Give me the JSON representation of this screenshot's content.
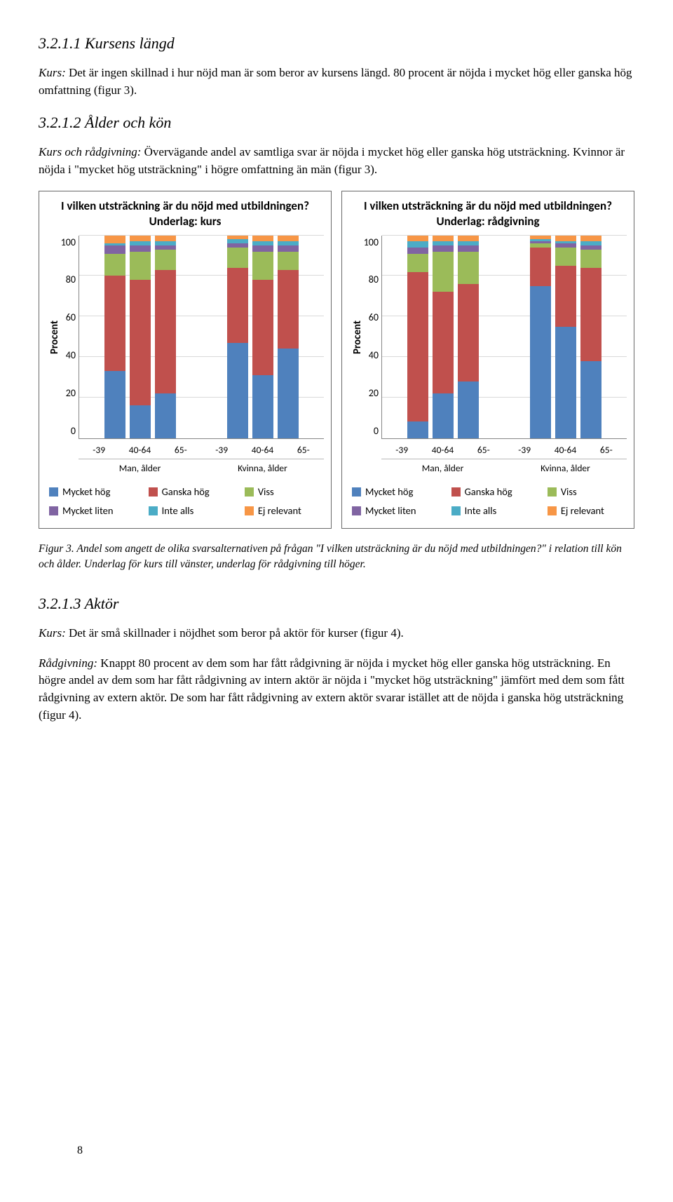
{
  "headings": {
    "h1": "3.2.1.1 Kursens längd",
    "h2": "3.2.1.2 Ålder och kön",
    "h3": "3.2.1.3 Aktör"
  },
  "paragraphs": {
    "p1_a": "Kurs:",
    "p1_b": " Det är ingen skillnad i hur nöjd man är som beror av kursens längd. 80 procent är nöjda i mycket hög eller ganska hög omfattning (figur 3).",
    "p2_a": "Kurs och rådgivning:",
    "p2_b": " Övervägande andel av samtliga svar är nöjda i mycket hög eller ganska hög utsträckning. Kvinnor är nöjda i \"mycket hög utsträckning\" i högre omfattning än män (figur 3).",
    "caption": "Figur 3. Andel som angett de olika svarsalternativen på frågan \"I vilken utsträckning är du nöjd med utbildningen?\" i relation till kön och ålder. Underlag för kurs till vänster, underlag för rådgivning till höger.",
    "p3_a": "Kurs:",
    "p3_b": " Det är små skillnader i nöjdhet som beror på aktör för kurser (figur 4).",
    "p4_a": "Rådgivning:",
    "p4_b": " Knappt 80 procent av dem som har fått rådgivning är nöjda i mycket hög eller ganska hög utsträckning. En högre andel av dem som har fått rådgivning av intern aktör är nöjda i \"mycket hög utsträckning\" jämfört med dem som fått rådgivning av extern aktör. De som har fått rådgivning av extern aktör svarar istället att de nöjda i ganska hög utsträckning (figur 4)."
  },
  "page_number": "8",
  "legend": {
    "labels": [
      "Mycket hög",
      "Ganska hög",
      "Viss",
      "Mycket liten",
      "Inte alls",
      "Ej relevant"
    ],
    "colors": [
      "#4f81bd",
      "#c0504d",
      "#9bbb59",
      "#8064a2",
      "#4bacc6",
      "#f79646"
    ]
  },
  "y_axis": {
    "label": "Procent",
    "ticks": [
      "100",
      "80",
      "60",
      "40",
      "20",
      "0"
    ],
    "max": 100
  },
  "x_axis": {
    "categories": [
      "-39",
      "40-64",
      "65-",
      "-39",
      "40-64",
      "65-"
    ],
    "groups": [
      "Man, ålder",
      "Kvinna, ålder"
    ]
  },
  "charts": {
    "left": {
      "title": "I vilken utsträckning är du nöjd med utbildningen?\nUnderlag: kurs",
      "series": [
        {
          "mycket_hog": 33,
          "ganska_hog": 47,
          "viss": 11,
          "mycket_liten": 4,
          "inte_alls": 1,
          "ej_relevant": 4
        },
        {
          "mycket_hog": 16,
          "ganska_hog": 62,
          "viss": 14,
          "mycket_liten": 3,
          "inte_alls": 2,
          "ej_relevant": 3
        },
        {
          "mycket_hog": 22,
          "ganska_hog": 61,
          "viss": 10,
          "mycket_liten": 2,
          "inte_alls": 2,
          "ej_relevant": 3
        },
        {
          "mycket_hog": 47,
          "ganska_hog": 37,
          "viss": 10,
          "mycket_liten": 2,
          "inte_alls": 2,
          "ej_relevant": 2
        },
        {
          "mycket_hog": 31,
          "ganska_hog": 47,
          "viss": 14,
          "mycket_liten": 3,
          "inte_alls": 2,
          "ej_relevant": 3
        },
        {
          "mycket_hog": 44,
          "ganska_hog": 39,
          "viss": 9,
          "mycket_liten": 3,
          "inte_alls": 2,
          "ej_relevant": 3
        }
      ]
    },
    "right": {
      "title": "I vilken utsträckning är du nöjd med utbildningen?\nUnderlag: rådgivning",
      "series": [
        {
          "mycket_hog": 8,
          "ganska_hog": 74,
          "viss": 9,
          "mycket_liten": 3,
          "inte_alls": 3,
          "ej_relevant": 3
        },
        {
          "mycket_hog": 22,
          "ganska_hog": 50,
          "viss": 20,
          "mycket_liten": 3,
          "inte_alls": 2,
          "ej_relevant": 3
        },
        {
          "mycket_hog": 28,
          "ganska_hog": 48,
          "viss": 16,
          "mycket_liten": 3,
          "inte_alls": 2,
          "ej_relevant": 3
        },
        {
          "mycket_hog": 75,
          "ganska_hog": 19,
          "viss": 2,
          "mycket_liten": 1,
          "inte_alls": 1,
          "ej_relevant": 2
        },
        {
          "mycket_hog": 55,
          "ganska_hog": 30,
          "viss": 9,
          "mycket_liten": 2,
          "inte_alls": 1,
          "ej_relevant": 3
        },
        {
          "mycket_hog": 38,
          "ganska_hog": 46,
          "viss": 9,
          "mycket_liten": 2,
          "inte_alls": 2,
          "ej_relevant": 3
        }
      ]
    }
  }
}
